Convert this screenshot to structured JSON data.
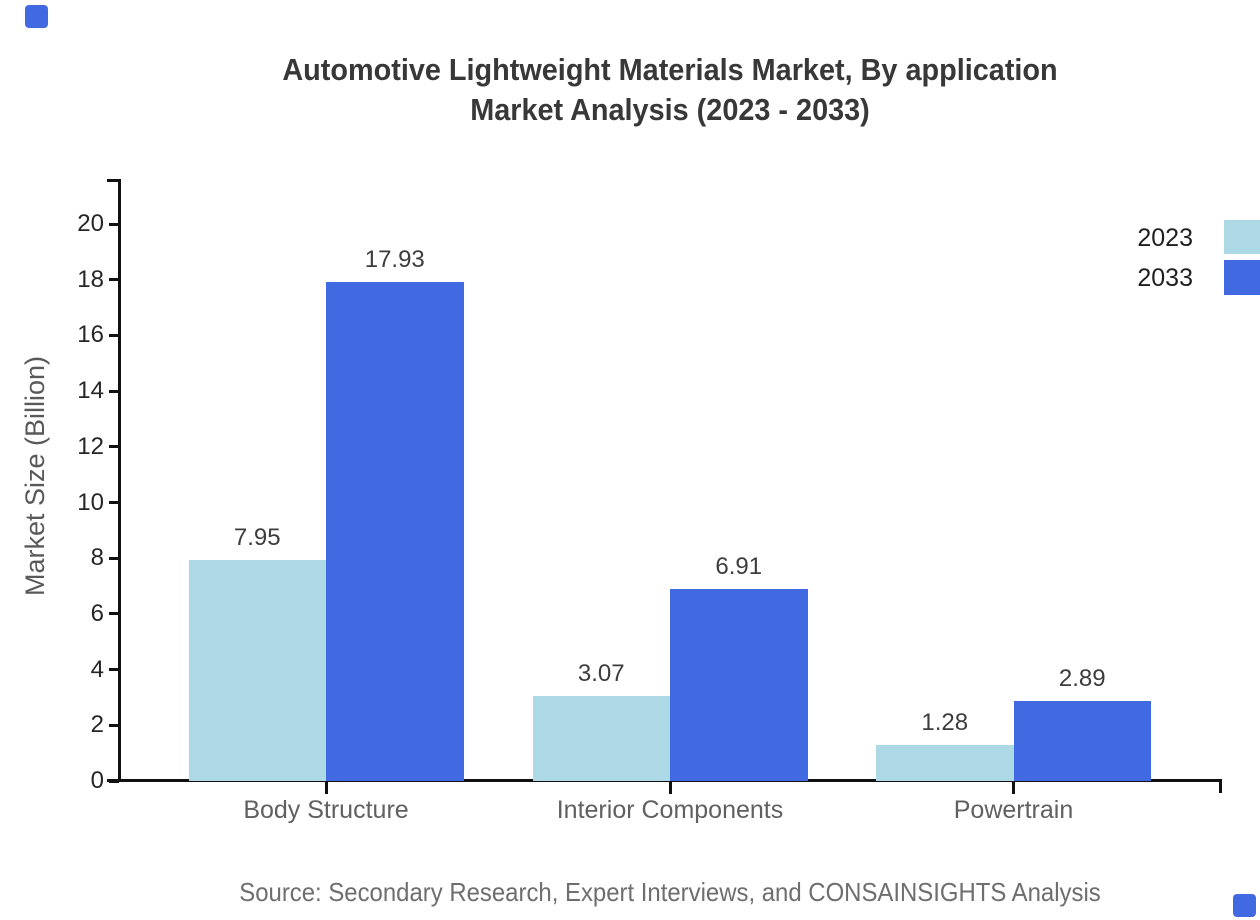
{
  "title": {
    "line1": "Automotive Lightweight Materials Market, By application",
    "line2": "Market Analysis (2023 - 2033)"
  },
  "source": "Source: Secondary Research, Expert Interviews, and CONSAINSIGHTS Analysis",
  "legend": [
    {
      "label": "2023",
      "color": "#ADD8E6"
    },
    {
      "label": "2033",
      "color": "#4169E1"
    }
  ],
  "colors": {
    "series_2023": "#ADD8E6",
    "series_2033": "#4169E1",
    "axis": "#111111",
    "corner_accent": "#4169E1"
  },
  "chart_data": {
    "type": "bar",
    "title": "Automotive Lightweight Materials Market, By application Market Analysis (2023 - 2033)",
    "categories": [
      "Body Structure",
      "Interior Components",
      "Powertrain"
    ],
    "series": [
      {
        "name": "2023",
        "color": "#ADD8E6",
        "values": [
          7.95,
          3.07,
          1.28
        ]
      },
      {
        "name": "2033",
        "color": "#4169E1",
        "values": [
          17.93,
          6.91,
          2.89
        ]
      }
    ],
    "value_labels": [
      [
        "7.95",
        "17.93"
      ],
      [
        "3.07",
        "6.91"
      ],
      [
        "1.28",
        "2.89"
      ]
    ],
    "xlabel": "",
    "ylabel": "Market Size (Billion)",
    "ylim": [
      0,
      20
    ],
    "ytick_step": 2,
    "ytick_labels": [
      "0",
      "2",
      "4",
      "6",
      "8",
      "10",
      "12",
      "14",
      "16",
      "18",
      "20"
    ],
    "grid": false,
    "legend_position": "top-right"
  }
}
